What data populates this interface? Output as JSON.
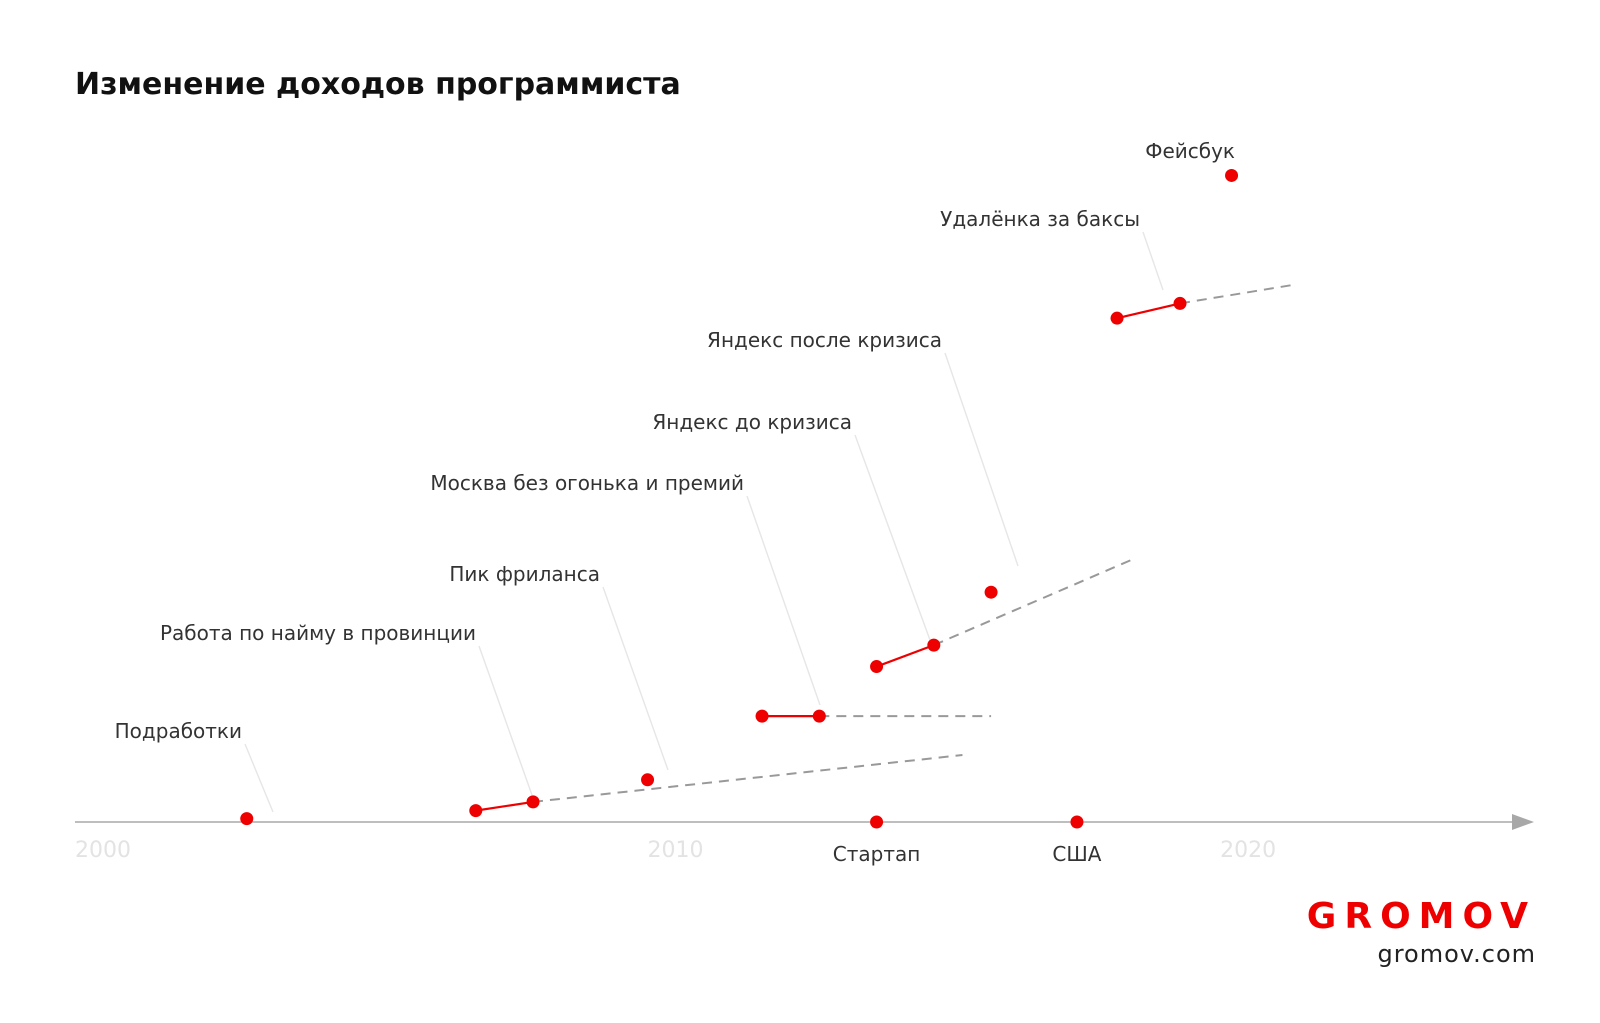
{
  "chart_data": {
    "type": "scatter",
    "title": "Изменение доходов программиста",
    "x_ticks": [
      "2000",
      "2010",
      "2020"
    ],
    "x_range": [
      2000,
      2025.5
    ],
    "grid": false,
    "events": [
      {
        "label": "Подработки",
        "points": [
          [
            2003.0,
            0.5
          ]
        ]
      },
      {
        "label": "Работа по найму в провинции",
        "points": [
          [
            2007.0,
            1.7
          ],
          [
            2008.0,
            3.0
          ]
        ],
        "trend_to": [
          2015.5,
          10.0
        ]
      },
      {
        "label": "Пик фриланса",
        "points": [
          [
            2010.0,
            6.3
          ]
        ]
      },
      {
        "label": "Москва без огонька и премий",
        "points": [
          [
            2012.0,
            15.8
          ],
          [
            2013.0,
            15.8
          ]
        ],
        "trend_to": [
          2016.0,
          15.8
        ]
      },
      {
        "label": "Яндекс до кризиса",
        "points": [
          [
            2014.0,
            23.2
          ],
          [
            2015.0,
            26.4
          ]
        ],
        "trend_to": [
          2018.5,
          39.3
        ]
      },
      {
        "label": "Яндекс после кризиса",
        "points": [
          [
            2016.0,
            34.3
          ]
        ]
      },
      {
        "label": "Удалёнка за баксы",
        "points": [
          [
            2018.2,
            75.2
          ],
          [
            2019.3,
            77.4
          ]
        ],
        "trend_to": [
          2021.3,
          80.2
        ]
      },
      {
        "label": "Фейсбук",
        "points": [
          [
            2020.2,
            96.5
          ]
        ]
      }
    ],
    "x_markers": [
      {
        "label": "Стартап",
        "x": 2014.0
      },
      {
        "label": "США",
        "x": 2017.5
      }
    ],
    "colors": {
      "point": "#ee0000",
      "segment": "#ee0000",
      "trend": "#999999",
      "leader": "#e6e6e6",
      "axis": "#a8a8a8"
    }
  },
  "brand": {
    "name": "GROMOV",
    "url": "gromov.com",
    "color": "#ee0000"
  }
}
